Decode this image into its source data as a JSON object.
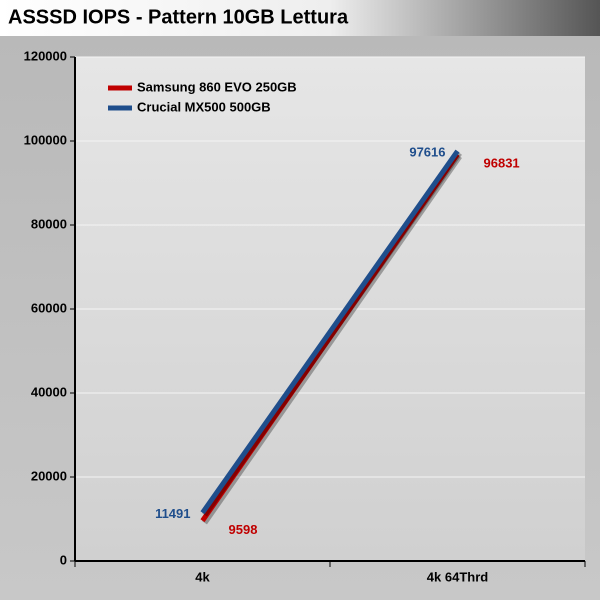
{
  "chart_data": {
    "type": "line",
    "title": "ASSSD IOPS - Pattern 10GB Lettura",
    "categories": [
      "4k",
      "4k 64Thrd"
    ],
    "series": [
      {
        "name": "Samsung 860 EVO 250GB",
        "color": "#c00000",
        "values": [
          9598,
          96831
        ]
      },
      {
        "name": "Crucial MX500 500GB",
        "color": "#1f4e8c",
        "values": [
          11491,
          97616
        ]
      }
    ],
    "ylim": [
      0,
      120000
    ],
    "yticks": [
      0,
      20000,
      40000,
      60000,
      80000,
      100000,
      120000
    ],
    "grid": true,
    "legend": "upper-left"
  }
}
